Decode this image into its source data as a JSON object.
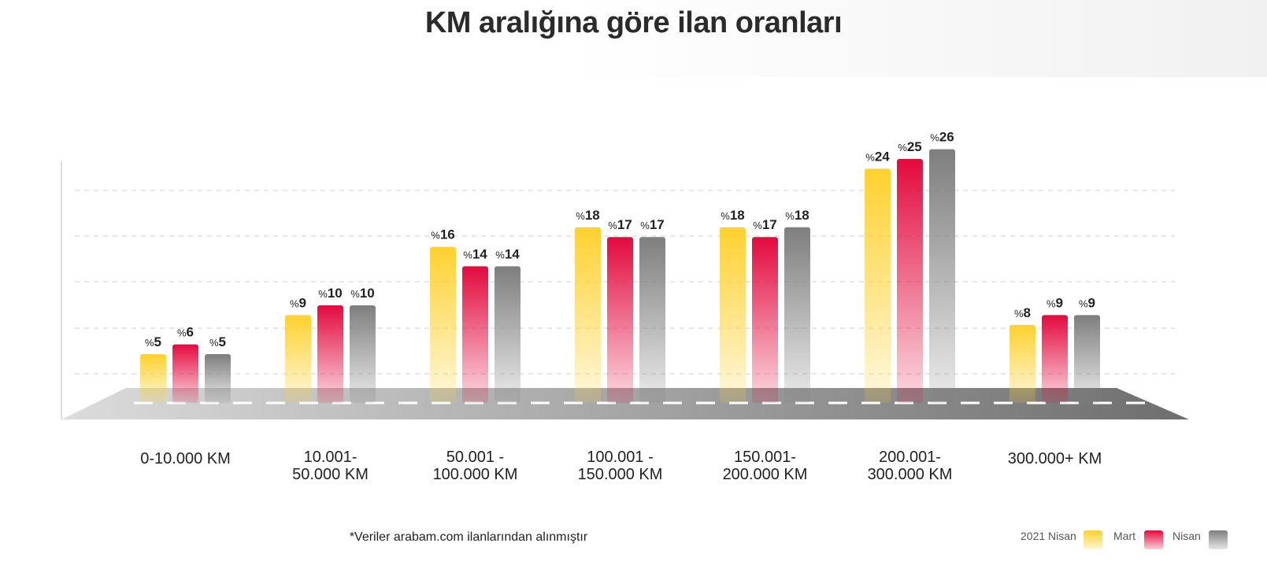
{
  "title": "KM aralığına göre ilan oranları",
  "footnote": "*Veriler arabam.com ilanlarından alınmıştır",
  "legend": {
    "title": "2021 Nisan",
    "items": [
      {
        "label": "",
        "color": "#FFD12E"
      },
      {
        "label": "Mart",
        "color": "#E30A3E"
      },
      {
        "label": "Nisan",
        "color": "#7E7E7E"
      }
    ]
  },
  "chart_data": {
    "type": "bar",
    "title": "KM aralığına göre ilan oranları",
    "value_prefix": "%",
    "categories": [
      "0-10.000 KM",
      "10.001-\n50.000 KM",
      "50.001 -\n100.000 KM",
      "100.001 -\n150.000 KM",
      "150.001-\n200.000 KM",
      "200.001-\n300.000 KM",
      "300.000+ KM"
    ],
    "series": [
      {
        "values": [
          5,
          9,
          16,
          18,
          18,
          24,
          8
        ],
        "color": "#FFD12E"
      },
      {
        "values": [
          6,
          10,
          14,
          17,
          17,
          25,
          9
        ],
        "color": "#E30A3E"
      },
      {
        "values": [
          5,
          10,
          14,
          17,
          18,
          26,
          9
        ],
        "color": "#7E7E7E"
      }
    ],
    "grid": true,
    "legend_position": "bottom-right"
  }
}
